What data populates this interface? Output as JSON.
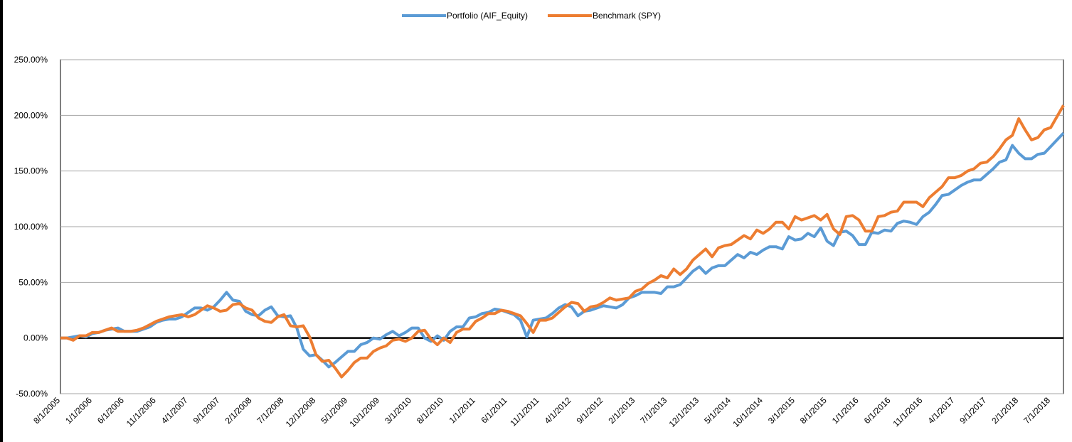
{
  "chart_data": {
    "type": "line",
    "categories": [
      "8/1/2005",
      null,
      null,
      null,
      null,
      "1/1/2006",
      null,
      null,
      null,
      null,
      "6/1/2006",
      null,
      null,
      null,
      null,
      "11/1/2006",
      null,
      null,
      null,
      null,
      "4/1/2007",
      null,
      null,
      null,
      null,
      "9/1/2007",
      null,
      null,
      null,
      null,
      "2/1/2008",
      null,
      null,
      null,
      null,
      "7/1/2008",
      null,
      null,
      null,
      null,
      "12/1/2008",
      null,
      null,
      null,
      null,
      "5/1/2009",
      null,
      null,
      null,
      null,
      "10/1/2009",
      null,
      null,
      null,
      null,
      "3/1/2010",
      null,
      null,
      null,
      null,
      "8/1/2010",
      null,
      null,
      null,
      null,
      "1/1/2011",
      null,
      null,
      null,
      null,
      "6/1/2011",
      null,
      null,
      null,
      null,
      "11/1/2011",
      null,
      null,
      null,
      null,
      "4/1/2012",
      null,
      null,
      null,
      null,
      "9/1/2012",
      null,
      null,
      null,
      null,
      "2/1/2013",
      null,
      null,
      null,
      null,
      "7/1/2013",
      null,
      null,
      null,
      null,
      "12/1/2013",
      null,
      null,
      null,
      null,
      "5/1/2014",
      null,
      null,
      null,
      null,
      "10/1/2014",
      null,
      null,
      null,
      null,
      "3/1/2015",
      null,
      null,
      null,
      null,
      "8/1/2015",
      null,
      null,
      null,
      null,
      "1/1/2016",
      null,
      null,
      null,
      null,
      "6/1/2016",
      null,
      null,
      null,
      null,
      "11/1/2016",
      null,
      null,
      null,
      null,
      "4/1/2017",
      null,
      null,
      null,
      null,
      "9/1/2017",
      null,
      null,
      null,
      null,
      "2/1/2018",
      null,
      null,
      null,
      null,
      "7/1/2018",
      null,
      null
    ],
    "series": [
      {
        "name": "Portfolio (AIF_Equity)",
        "color": "#5b9bd5",
        "values": [
          0,
          0,
          1,
          2,
          1,
          4,
          5,
          7,
          8,
          9,
          6,
          6,
          6,
          8,
          10,
          14,
          16,
          17,
          17,
          19,
          23,
          27,
          27,
          25,
          28,
          34,
          41,
          34,
          33,
          24,
          21,
          20,
          25,
          28,
          20,
          19,
          20,
          9,
          -10,
          -16,
          -15,
          -20,
          -26,
          -22,
          -17,
          -12,
          -12,
          -6,
          -4,
          0,
          -1,
          3,
          6,
          2,
          5,
          9,
          9,
          0,
          -3,
          2,
          -2,
          6,
          10,
          10,
          18,
          19,
          22,
          23,
          26,
          25,
          23,
          21,
          16,
          1,
          16,
          17,
          18,
          22,
          27,
          30,
          28,
          20,
          24,
          25,
          27,
          29,
          28,
          27,
          30,
          36,
          38,
          41,
          41,
          41,
          40,
          46,
          46,
          48,
          54,
          60,
          64,
          58,
          63,
          65,
          65,
          70,
          75,
          72,
          77,
          75,
          79,
          82,
          82,
          80,
          91,
          88,
          89,
          94,
          91,
          99,
          87,
          83,
          95,
          96,
          92,
          84,
          84,
          95,
          94,
          97,
          96,
          103,
          105,
          104,
          102,
          109,
          113,
          120,
          128,
          129,
          133,
          137,
          140,
          142,
          142,
          147,
          152,
          158,
          160,
          173,
          166,
          161,
          161,
          165,
          166,
          172,
          178,
          184
        ]
      },
      {
        "name": "Benchmark (SPY)",
        "color": "#ed7d31",
        "values": [
          0,
          0,
          -2,
          2,
          2,
          5,
          5,
          7,
          9,
          6,
          6,
          6,
          7,
          9,
          12,
          15,
          17,
          19,
          20,
          21,
          19,
          21,
          25,
          29,
          27,
          24,
          25,
          30,
          31,
          27,
          25,
          18,
          15,
          14,
          19,
          21,
          11,
          10,
          11,
          1,
          -15,
          -21,
          -20,
          -27,
          -35,
          -29,
          -22,
          -18,
          -18,
          -12,
          -9,
          -7,
          -2,
          -1,
          -3,
          0,
          6,
          7,
          -1,
          -6,
          0,
          -4,
          5,
          8,
          8,
          15,
          18,
          22,
          22,
          25,
          24,
          22,
          20,
          13,
          5,
          16,
          16,
          18,
          23,
          28,
          32,
          31,
          24,
          28,
          29,
          32,
          36,
          34,
          35,
          36,
          42,
          44,
          49,
          52,
          56,
          54,
          62,
          57,
          62,
          70,
          75,
          80,
          73,
          81,
          83,
          84,
          88,
          92,
          89,
          97,
          94,
          98,
          104,
          104,
          98,
          109,
          106,
          108,
          110,
          106,
          111,
          98,
          93,
          109,
          110,
          106,
          96,
          96,
          109,
          110,
          113,
          114,
          122,
          122,
          122,
          118,
          126,
          131,
          136,
          144,
          144,
          146,
          150,
          152,
          157,
          158,
          163,
          170,
          178,
          182,
          197,
          187,
          178,
          180,
          187,
          189,
          199,
          209
        ]
      }
    ],
    "ylim": [
      -50,
      250
    ],
    "yticks": [
      {
        "value": -50,
        "label": "-50.00%"
      },
      {
        "value": 0,
        "label": "0.00%"
      },
      {
        "value": 50,
        "label": "50.00%"
      },
      {
        "value": 100,
        "label": "100.00%"
      },
      {
        "value": 150,
        "label": "150.00%"
      },
      {
        "value": 200,
        "label": "200.00%"
      },
      {
        "value": 250,
        "label": "250.00%"
      }
    ],
    "grid": true,
    "legend": "top"
  }
}
